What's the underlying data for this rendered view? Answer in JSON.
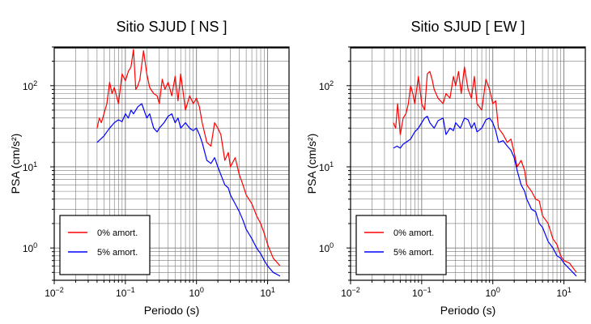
{
  "chart_data": [
    {
      "type": "line",
      "title": "Sitio SJUD [ NS ]",
      "xlabel": "Periodo (s)",
      "ylabel": "PSA (cm/s²)",
      "x_scale": "log",
      "y_scale": "log",
      "xlim": [
        0.01,
        20
      ],
      "ylim": [
        0.4,
        300
      ],
      "x_ticks": [
        {
          "value": 0.01,
          "base": "10",
          "exp": "−2"
        },
        {
          "value": 0.1,
          "base": "10",
          "exp": "−1"
        },
        {
          "value": 1,
          "base": "10",
          "exp": "0"
        },
        {
          "value": 10,
          "base": "10",
          "exp": "1"
        }
      ],
      "y_ticks": [
        {
          "value": 1,
          "base": "10",
          "exp": "0"
        },
        {
          "value": 10,
          "base": "10",
          "exp": "1"
        },
        {
          "value": 100,
          "base": "10",
          "exp": "2"
        }
      ],
      "grid": true,
      "legend_position": "bottom-left",
      "series": [
        {
          "name": "0% amort.",
          "color": "#ff0000",
          "x": [
            0.04,
            0.043,
            0.046,
            0.05,
            0.055,
            0.06,
            0.065,
            0.07,
            0.075,
            0.08,
            0.09,
            0.1,
            0.11,
            0.12,
            0.13,
            0.14,
            0.15,
            0.16,
            0.18,
            0.2,
            0.22,
            0.25,
            0.28,
            0.3,
            0.33,
            0.36,
            0.4,
            0.45,
            0.5,
            0.55,
            0.6,
            0.7,
            0.8,
            0.9,
            1.0,
            1.1,
            1.2,
            1.4,
            1.6,
            1.8,
            2.0,
            2.2,
            2.5,
            2.8,
            3.0,
            3.5,
            4.0,
            4.5,
            5.0,
            6.0,
            7.0,
            8.0,
            9.0,
            10.0,
            12.0,
            15.0
          ],
          "y": [
            30,
            40,
            35,
            45,
            60,
            110,
            80,
            95,
            75,
            60,
            140,
            115,
            150,
            170,
            280,
            90,
            100,
            120,
            270,
            140,
            95,
            80,
            75,
            60,
            120,
            90,
            110,
            75,
            130,
            65,
            140,
            50,
            75,
            60,
            70,
            55,
            35,
            20,
            18,
            35,
            30,
            25,
            12,
            15,
            10,
            13,
            8,
            6,
            4.5,
            3.5,
            2.5,
            2,
            1.5,
            1.1,
            0.75,
            0.6
          ]
        },
        {
          "name": "5% amort.",
          "color": "#0000ff",
          "x": [
            0.04,
            0.045,
            0.05,
            0.055,
            0.06,
            0.07,
            0.08,
            0.09,
            0.1,
            0.11,
            0.12,
            0.13,
            0.15,
            0.17,
            0.2,
            0.22,
            0.25,
            0.28,
            0.3,
            0.35,
            0.4,
            0.45,
            0.5,
            0.55,
            0.6,
            0.7,
            0.8,
            0.9,
            1.0,
            1.1,
            1.2,
            1.4,
            1.6,
            1.8,
            2.0,
            2.2,
            2.5,
            2.8,
            3.0,
            3.5,
            4.0,
            4.5,
            5.0,
            6.0,
            7.0,
            8.0,
            9.0,
            10.0,
            12.0,
            15.0
          ],
          "y": [
            20,
            22,
            24,
            27,
            30,
            35,
            38,
            36,
            45,
            40,
            50,
            45,
            55,
            60,
            40,
            45,
            30,
            27,
            30,
            35,
            42,
            45,
            35,
            40,
            30,
            35,
            30,
            28,
            30,
            25,
            20,
            12,
            11,
            13,
            10,
            8,
            6,
            5.5,
            4.5,
            3.5,
            2.8,
            2.2,
            1.7,
            1.3,
            1.0,
            0.85,
            0.7,
            0.6,
            0.5,
            0.45
          ]
        }
      ]
    },
    {
      "type": "line",
      "title": "Sitio SJUD [ EW ]",
      "xlabel": "Periodo (s)",
      "ylabel": "PSA (cm/s²)",
      "x_scale": "log",
      "y_scale": "log",
      "xlim": [
        0.01,
        20
      ],
      "ylim": [
        0.4,
        300
      ],
      "x_ticks": [
        {
          "value": 0.01,
          "base": "10",
          "exp": "−2"
        },
        {
          "value": 0.1,
          "base": "10",
          "exp": "−1"
        },
        {
          "value": 1,
          "base": "10",
          "exp": "0"
        },
        {
          "value": 10,
          "base": "10",
          "exp": "1"
        }
      ],
      "y_ticks": [
        {
          "value": 1,
          "base": "10",
          "exp": "0"
        },
        {
          "value": 10,
          "base": "10",
          "exp": "1"
        },
        {
          "value": 100,
          "base": "10",
          "exp": "2"
        }
      ],
      "grid": true,
      "legend_position": "bottom-left",
      "series": [
        {
          "name": "0% amort.",
          "color": "#ff0000",
          "x": [
            0.04,
            0.043,
            0.046,
            0.05,
            0.055,
            0.06,
            0.065,
            0.07,
            0.075,
            0.08,
            0.09,
            0.1,
            0.11,
            0.12,
            0.13,
            0.14,
            0.15,
            0.17,
            0.2,
            0.22,
            0.25,
            0.28,
            0.3,
            0.33,
            0.36,
            0.4,
            0.45,
            0.5,
            0.55,
            0.6,
            0.7,
            0.8,
            0.9,
            1.0,
            1.1,
            1.2,
            1.4,
            1.6,
            1.8,
            2.0,
            2.2,
            2.5,
            2.8,
            3.0,
            3.5,
            4.0,
            4.5,
            5.0,
            6.0,
            7.0,
            8.0,
            9.0,
            10.0,
            12.0,
            15.0
          ],
          "y": [
            35,
            30,
            60,
            25,
            40,
            45,
            60,
            100,
            80,
            60,
            130,
            60,
            50,
            140,
            150,
            120,
            90,
            70,
            60,
            80,
            70,
            130,
            100,
            150,
            80,
            170,
            90,
            70,
            130,
            60,
            50,
            120,
            90,
            60,
            65,
            30,
            25,
            20,
            22,
            15,
            10,
            12,
            9,
            6,
            5,
            4,
            3.8,
            2.5,
            2.0,
            1.3,
            1.1,
            0.8,
            0.7,
            0.65,
            0.5
          ]
        },
        {
          "name": "5% amort.",
          "color": "#0000ff",
          "x": [
            0.04,
            0.045,
            0.05,
            0.055,
            0.06,
            0.07,
            0.08,
            0.09,
            0.1,
            0.11,
            0.12,
            0.13,
            0.15,
            0.17,
            0.2,
            0.22,
            0.25,
            0.28,
            0.3,
            0.35,
            0.4,
            0.45,
            0.5,
            0.55,
            0.6,
            0.7,
            0.8,
            0.9,
            1.0,
            1.1,
            1.2,
            1.4,
            1.6,
            1.8,
            2.0,
            2.2,
            2.5,
            2.8,
            3.0,
            3.5,
            4.0,
            4.5,
            5.0,
            6.0,
            7.0,
            8.0,
            9.0,
            10.0,
            12.0,
            15.0
          ],
          "y": [
            17,
            18,
            17,
            19,
            20,
            22,
            27,
            30,
            35,
            40,
            42,
            35,
            30,
            37,
            40,
            25,
            30,
            28,
            35,
            30,
            40,
            38,
            30,
            35,
            27,
            30,
            38,
            40,
            35,
            28,
            20,
            21,
            18,
            16,
            13,
            9,
            6,
            5,
            4,
            3,
            2.8,
            2.0,
            1.8,
            1.2,
            1.0,
            0.8,
            0.75,
            0.65,
            0.55,
            0.45
          ]
        }
      ]
    }
  ]
}
